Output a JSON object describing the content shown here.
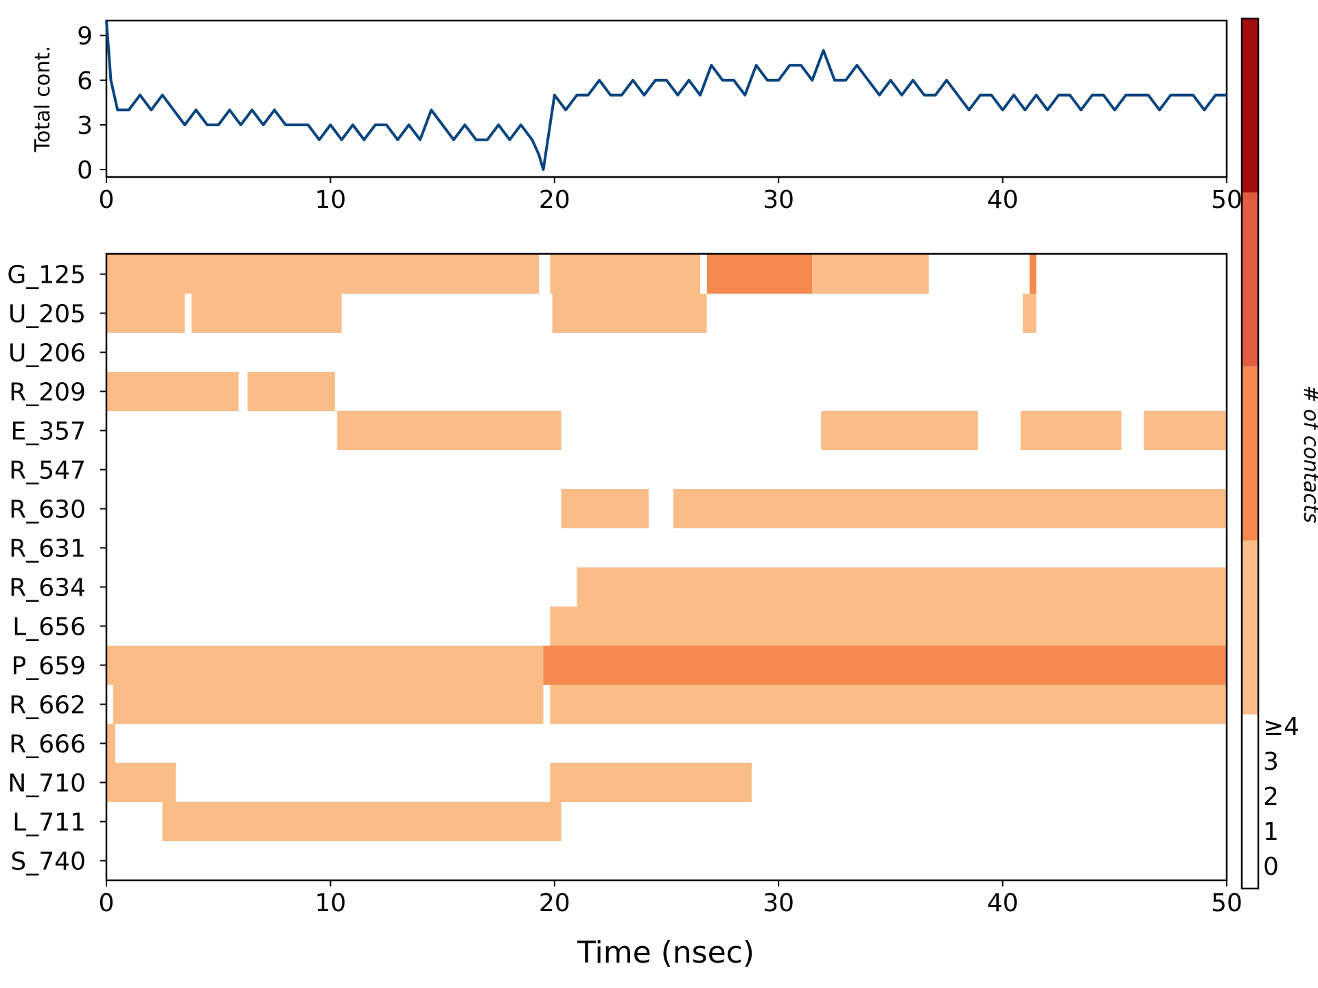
{
  "chart_data": [
    {
      "type": "line",
      "title": "",
      "xlabel": "",
      "ylabel": "Total cont.",
      "xlim": [
        0,
        50
      ],
      "ylim": [
        -0.5,
        10
      ],
      "xticks": [
        "0",
        "10",
        "20",
        "30",
        "40",
        "50"
      ],
      "yticks": [
        "0",
        "3",
        "6",
        "9"
      ],
      "line_color": "#08457e",
      "x": [
        0,
        0.1,
        0.2,
        0.5,
        1,
        1.5,
        2,
        2.5,
        3,
        3.5,
        4,
        4.5,
        5,
        5.5,
        6,
        6.5,
        7,
        7.5,
        8,
        8.5,
        9,
        9.5,
        10,
        10.5,
        11,
        11.5,
        12,
        12.5,
        13,
        13.5,
        14,
        14.5,
        15,
        15.5,
        16,
        16.5,
        17,
        17.5,
        18,
        18.5,
        19,
        19.3,
        19.5,
        19.8,
        20,
        20.5,
        21,
        21.5,
        22,
        22.5,
        23,
        23.5,
        24,
        24.5,
        25,
        25.5,
        26,
        26.5,
        27,
        27.5,
        28,
        28.5,
        29,
        29.5,
        30,
        30.5,
        31,
        31.5,
        32,
        32.5,
        33,
        33.5,
        34,
        34.5,
        35,
        35.5,
        36,
        36.5,
        37,
        37.5,
        38,
        38.5,
        39,
        39.5,
        40,
        40.5,
        41,
        41.5,
        42,
        42.5,
        43,
        43.5,
        44,
        44.5,
        45,
        45.5,
        46,
        46.5,
        47,
        47.5,
        48,
        48.5,
        49,
        49.5,
        50
      ],
      "values": [
        10,
        8,
        6,
        4,
        4,
        5,
        4,
        5,
        4,
        3,
        4,
        3,
        3,
        4,
        3,
        4,
        3,
        4,
        3,
        3,
        3,
        2,
        3,
        2,
        3,
        2,
        3,
        3,
        2,
        3,
        2,
        4,
        3,
        2,
        3,
        2,
        2,
        3,
        2,
        3,
        2,
        1,
        0,
        3,
        5,
        4,
        5,
        5,
        6,
        5,
        5,
        6,
        5,
        6,
        6,
        5,
        6,
        5,
        7,
        6,
        6,
        5,
        7,
        6,
        6,
        7,
        7,
        6,
        8,
        6,
        6,
        7,
        6,
        5,
        6,
        5,
        6,
        5,
        5,
        6,
        5,
        4,
        5,
        5,
        4,
        5,
        4,
        5,
        4,
        5,
        5,
        4,
        5,
        5,
        4,
        5,
        5,
        5,
        4,
        5,
        5,
        5,
        4,
        5,
        5
      ]
    },
    {
      "type": "heatmap",
      "title": "",
      "xlabel": "Time (nsec)",
      "ylabel": "",
      "xlim": [
        0,
        50
      ],
      "xticks": [
        "0",
        "10",
        "20",
        "30",
        "40",
        "50"
      ],
      "rows": [
        "G_125",
        "U_205",
        "U_206",
        "R_209",
        "E_357",
        "R_547",
        "R_630",
        "R_631",
        "R_634",
        "L_656",
        "P_659",
        "R_662",
        "R_666",
        "N_710",
        "L_711",
        "S_740"
      ],
      "value_meaning": "# of contacts",
      "segments": [
        {
          "row": 0,
          "start": 0,
          "end": 19.3,
          "value": 1
        },
        {
          "row": 0,
          "start": 19.8,
          "end": 26.5,
          "value": 1
        },
        {
          "row": 0,
          "start": 26.8,
          "end": 31.5,
          "value": 2
        },
        {
          "row": 0,
          "start": 31.5,
          "end": 36.7,
          "value": 1
        },
        {
          "row": 0,
          "start": 41.2,
          "end": 41.5,
          "value": 2
        },
        {
          "row": 1,
          "start": 0,
          "end": 3.5,
          "value": 1
        },
        {
          "row": 1,
          "start": 3.8,
          "end": 10.5,
          "value": 1
        },
        {
          "row": 1,
          "start": 19.9,
          "end": 26.8,
          "value": 1
        },
        {
          "row": 1,
          "start": 40.9,
          "end": 41.5,
          "value": 1
        },
        {
          "row": 3,
          "start": 0,
          "end": 5.9,
          "value": 1
        },
        {
          "row": 3,
          "start": 6.3,
          "end": 10.2,
          "value": 1
        },
        {
          "row": 4,
          "start": 10.3,
          "end": 20.3,
          "value": 1
        },
        {
          "row": 4,
          "start": 31.9,
          "end": 38.9,
          "value": 1
        },
        {
          "row": 4,
          "start": 40.8,
          "end": 45.3,
          "value": 1
        },
        {
          "row": 4,
          "start": 46.3,
          "end": 50,
          "value": 1
        },
        {
          "row": 6,
          "start": 20.3,
          "end": 24.2,
          "value": 1
        },
        {
          "row": 6,
          "start": 25.3,
          "end": 50,
          "value": 1
        },
        {
          "row": 8,
          "start": 21,
          "end": 50,
          "value": 1
        },
        {
          "row": 9,
          "start": 19.8,
          "end": 50,
          "value": 1
        },
        {
          "row": 10,
          "start": 0,
          "end": 19.5,
          "value": 1
        },
        {
          "row": 10,
          "start": 19.5,
          "end": 50,
          "value": 2
        },
        {
          "row": 11,
          "start": 0.3,
          "end": 19.5,
          "value": 1
        },
        {
          "row": 11,
          "start": 19.8,
          "end": 50,
          "value": 1
        },
        {
          "row": 12,
          "start": 0,
          "end": 0.4,
          "value": 1
        },
        {
          "row": 13,
          "start": 0,
          "end": 3.1,
          "value": 1
        },
        {
          "row": 13,
          "start": 19.8,
          "end": 28.8,
          "value": 1
        },
        {
          "row": 14,
          "start": 2.5,
          "end": 20.3,
          "value": 1
        }
      ],
      "colorbar": {
        "label": "# of contacts",
        "ticks": [
          "0",
          "1",
          "2",
          "3",
          "≥4"
        ],
        "colors": [
          "#ffffff",
          "#fbbd88",
          "#f6894f",
          "#e25c41",
          "#a50e0e"
        ]
      }
    }
  ]
}
